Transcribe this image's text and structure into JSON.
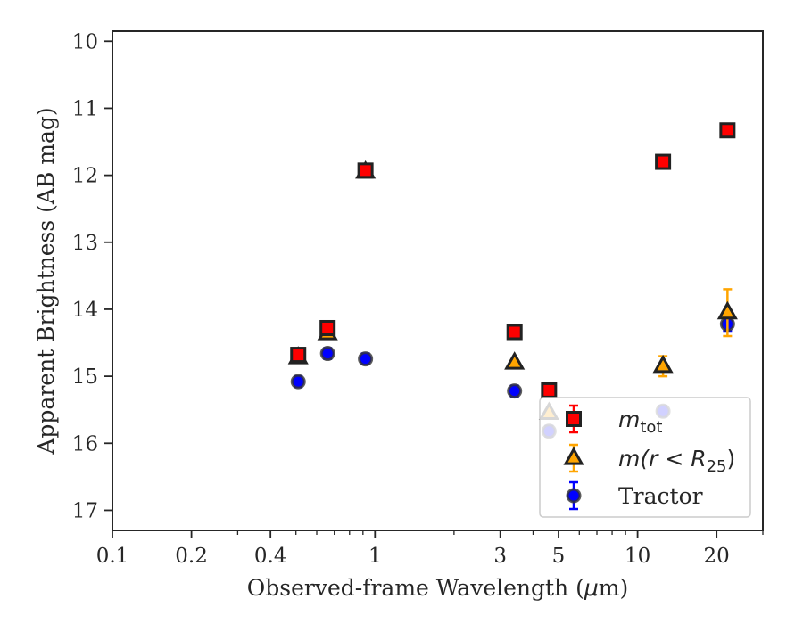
{
  "chart_data": {
    "type": "scatter",
    "title": "",
    "xlabel_main": "Observed-frame Wavelength (",
    "xlabel_unit_mu": "μ",
    "xlabel_unit_rest": "m)",
    "ylabel": "Apparent Brightness (AB mag)",
    "x_scale": "log",
    "y_inverted": true,
    "xlim": [
      0.1,
      30
    ],
    "ylim": [
      17.3,
      9.85
    ],
    "x_ticks": [
      {
        "value": 0.1,
        "label": "0.1"
      },
      {
        "value": 0.2,
        "label": "0.2"
      },
      {
        "value": 0.4,
        "label": "0.4"
      },
      {
        "value": 1,
        "label": "1"
      },
      {
        "value": 3,
        "label": "3"
      },
      {
        "value": 5,
        "label": "5"
      },
      {
        "value": 10,
        "label": "10"
      },
      {
        "value": 20,
        "label": "20"
      }
    ],
    "y_ticks": [
      {
        "value": 10,
        "label": "10"
      },
      {
        "value": 11,
        "label": "11"
      },
      {
        "value": 12,
        "label": "12"
      },
      {
        "value": 13,
        "label": "13"
      },
      {
        "value": 14,
        "label": "14"
      },
      {
        "value": 15,
        "label": "15"
      },
      {
        "value": 16,
        "label": "16"
      },
      {
        "value": 17,
        "label": "17"
      }
    ],
    "grid": false,
    "legend_position": "lower-right",
    "series": [
      {
        "key": "mtot",
        "legend_label_base": "m",
        "legend_label_sub": "tot",
        "marker": "square",
        "color": "#ff0000",
        "error_color": "#ff0000",
        "x": [
          0.51,
          0.66,
          0.92,
          3.4,
          4.6,
          12.5,
          22
        ],
        "y": [
          14.68,
          14.28,
          11.93,
          14.34,
          15.21,
          11.8,
          11.33
        ],
        "yerr": [
          0.05,
          0.05,
          0.05,
          0.03,
          0.03,
          0.03,
          0.03
        ]
      },
      {
        "key": "mr25",
        "legend_label_base": "m",
        "legend_label_rest": "(r < R",
        "legend_label_sub": "25",
        "legend_label_close": ")",
        "marker": "triangle",
        "color": "#ffa500",
        "error_color": "#ffa500",
        "x": [
          0.51,
          0.66,
          0.92,
          3.4,
          4.6,
          12.5,
          22
        ],
        "y": [
          14.72,
          14.36,
          11.95,
          14.8,
          15.55,
          14.85,
          14.05
        ],
        "yerr": [
          0.05,
          0.05,
          0.05,
          0.04,
          0.05,
          0.15,
          0.35
        ]
      },
      {
        "key": "tractor",
        "legend_label": "Tractor",
        "marker": "circle",
        "color": "#0000ff",
        "error_color": "#0000ff",
        "x": [
          0.51,
          0.66,
          0.92,
          3.4,
          4.6,
          12.5,
          22
        ],
        "y": [
          15.08,
          14.66,
          14.74,
          15.22,
          15.82,
          15.52,
          14.22
        ],
        "yerr": [
          0.08,
          0.08,
          0.08,
          0.08,
          0.08,
          0.08,
          0.1
        ]
      }
    ]
  }
}
